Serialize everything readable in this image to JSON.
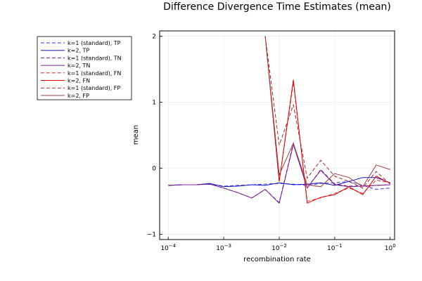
{
  "chart_data": {
    "type": "line",
    "title": "Difference Divergence Time Estimates (mean)",
    "xlabel": "recombination rate",
    "ylabel": "mean",
    "xscale": "log",
    "xlim": [
      7e-05,
      1.2
    ],
    "ylim": [
      -1.08,
      2.08
    ],
    "xticks": [
      {
        "value": 0.0001,
        "base": "10",
        "exp": "−4"
      },
      {
        "value": 0.001,
        "base": "10",
        "exp": "−3"
      },
      {
        "value": 0.01,
        "base": "10",
        "exp": "−2"
      },
      {
        "value": 0.1,
        "base": "10",
        "exp": "−1"
      },
      {
        "value": 1,
        "base": "10",
        "exp": "0"
      }
    ],
    "yticks": [
      {
        "value": -1,
        "label": "−1"
      },
      {
        "value": 0,
        "label": "0"
      },
      {
        "value": 1,
        "label": "1"
      },
      {
        "value": 2,
        "label": "2"
      }
    ],
    "grid": true,
    "legend_position": "outside-top-left",
    "x": [
      0.0001,
      0.00018,
      0.00032,
      0.00056,
      0.001,
      0.0018,
      0.0032,
      0.0056,
      0.01,
      0.018,
      0.032,
      0.056,
      0.1,
      0.18,
      0.32,
      0.56,
      1.0
    ],
    "series": [
      {
        "name": "k=1 (standard), TP",
        "color": "#3a3af0",
        "dash": true,
        "values": [
          -0.26,
          -0.25,
          -0.25,
          -0.24,
          -0.27,
          -0.26,
          -0.25,
          -0.24,
          -0.23,
          -0.24,
          -0.26,
          -0.23,
          -0.22,
          -0.2,
          -0.26,
          -0.32,
          -0.3
        ]
      },
      {
        "name": "k=2, TP",
        "color": "#1010c8",
        "dash": false,
        "values": [
          -0.26,
          -0.25,
          -0.25,
          -0.23,
          -0.28,
          -0.27,
          -0.25,
          -0.26,
          -0.22,
          -0.25,
          -0.24,
          -0.22,
          -0.26,
          -0.2,
          -0.14,
          -0.14,
          -0.22
        ]
      },
      {
        "name": "k=1 (standard), TN",
        "color": "#6a1a8a",
        "dash": true,
        "values": [
          -0.26,
          -0.25,
          -0.25,
          -0.24,
          -0.3,
          -0.37,
          -0.45,
          -0.32,
          -0.52,
          0.38,
          -0.3,
          -0.02,
          -0.24,
          -0.27,
          -0.27,
          -0.26,
          -0.25
        ]
      },
      {
        "name": "k=2, TN",
        "color": "#7a2090",
        "dash": false,
        "values": [
          -0.26,
          -0.25,
          -0.25,
          -0.24,
          -0.3,
          -0.37,
          -0.45,
          -0.32,
          -0.53,
          0.36,
          -0.3,
          -0.03,
          -0.25,
          -0.28,
          -0.27,
          -0.26,
          -0.25
        ]
      },
      {
        "name": "k=1 (standard), FN",
        "color": "#e03030",
        "dash": true,
        "values": [
          null,
          null,
          null,
          null,
          null,
          null,
          null,
          2.0,
          -0.2,
          1.3,
          -0.5,
          -0.45,
          -0.38,
          -0.3,
          -0.38,
          -0.18,
          -0.22
        ]
      },
      {
        "name": "k=2, FN",
        "color": "#e00000",
        "dash": false,
        "values": [
          null,
          null,
          null,
          null,
          null,
          null,
          null,
          2.0,
          -0.2,
          1.34,
          -0.53,
          -0.44,
          -0.4,
          -0.28,
          -0.4,
          -0.12,
          -0.23
        ]
      },
      {
        "name": "k=1 (standard), FP",
        "color": "#a02828",
        "dash": true,
        "values": [
          null,
          null,
          null,
          null,
          null,
          null,
          null,
          2.0,
          0.35,
          0.96,
          -0.15,
          0.12,
          -0.12,
          -0.2,
          -0.3,
          -0.05,
          -0.24
        ]
      },
      {
        "name": "k=2, FP",
        "color": "#a04040",
        "dash": false,
        "values": [
          null,
          null,
          null,
          null,
          null,
          null,
          null,
          2.0,
          -0.1,
          0.38,
          -0.25,
          -0.28,
          -0.08,
          -0.14,
          -0.28,
          0.05,
          -0.02
        ]
      }
    ]
  }
}
